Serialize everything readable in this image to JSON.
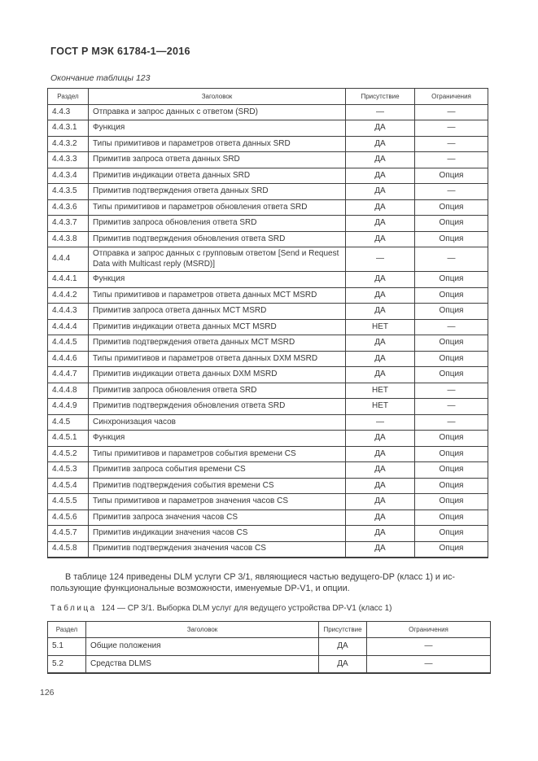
{
  "page": {
    "doc_title": "ГОСТ Р МЭК 61784-1—2016",
    "continuation_note": "Окончание таблицы 123",
    "page_number": "126"
  },
  "columns": {
    "section": "Раздел",
    "heading": "Заголовок",
    "presence": "Присутствие",
    "constraints": "Ограничения"
  },
  "table123": {
    "rows": [
      {
        "section": "4.4.3",
        "heading": "Отправка и запрос данных с ответом (SRD)",
        "presence": "—",
        "constraints": "—"
      },
      {
        "section": "4.4.3.1",
        "heading": "Функция",
        "presence": "ДА",
        "constraints": "—"
      },
      {
        "section": "4.4.3.2",
        "heading": "Типы примитивов и параметров ответа данных SRD",
        "presence": "ДА",
        "constraints": "—"
      },
      {
        "section": "4.4.3.3",
        "heading": "Примитив запроса ответа данных SRD",
        "presence": "ДА",
        "constraints": "—"
      },
      {
        "section": "4.4.3.4",
        "heading": "Примитив индикации ответа данных SRD",
        "presence": "ДА",
        "constraints": "Опция"
      },
      {
        "section": "4.4.3.5",
        "heading": "Примитив подтверждения ответа данных SRD",
        "presence": "ДА",
        "constraints": "—"
      },
      {
        "section": "4.4.3.6",
        "heading": "Типы примитивов и параметров обновления ответа SRD",
        "presence": "ДА",
        "constraints": "Опция"
      },
      {
        "section": "4.4.3.7",
        "heading": "Примитив запроса обновления ответа SRD",
        "presence": "ДА",
        "constraints": "Опция"
      },
      {
        "section": "4.4.3.8",
        "heading": "Примитив подтверждения обновления ответа SRD",
        "presence": "ДА",
        "constraints": "Опция"
      },
      {
        "section": "4.4.4",
        "heading": "Отправка и запрос данных с групповым ответом [Send и Request Data with Multicast reply (MSRD)]",
        "presence": "—",
        "constraints": "—"
      },
      {
        "section": "4.4.4.1",
        "heading": "Функция",
        "presence": "ДА",
        "constraints": "Опция"
      },
      {
        "section": "4.4.4.2",
        "heading": "Типы примитивов и параметров ответа данных MCT MSRD",
        "presence": "ДА",
        "constraints": "Опция"
      },
      {
        "section": "4.4.4.3",
        "heading": "Примитив запроса ответа данных MCT MSRD",
        "presence": "ДА",
        "constraints": "Опция"
      },
      {
        "section": "4.4.4.4",
        "heading": "Примитив индикации ответа данных MCT MSRD",
        "presence": "НЕТ",
        "constraints": "—"
      },
      {
        "section": "4.4.4.5",
        "heading": "Примитив подтверждения ответа данных MCT MSRD",
        "presence": "ДА",
        "constraints": "Опция"
      },
      {
        "section": "4.4.4.6",
        "heading": "Типы примитивов и параметров ответа данных DXM MSRD",
        "presence": "ДА",
        "constraints": "Опция"
      },
      {
        "section": "4.4.4.7",
        "heading": "Примитив индикации ответа данных DXM MSRD",
        "presence": "ДА",
        "constraints": "Опция"
      },
      {
        "section": "4.4.4.8",
        "heading": "Примитив запроса обновления ответа SRD",
        "presence": "НЕТ",
        "constraints": "—"
      },
      {
        "section": "4.4.4.9",
        "heading": "Примитив подтверждения обновления ответа SRD",
        "presence": "НЕТ",
        "constraints": "—"
      },
      {
        "section": "4.4.5",
        "heading": "Синхронизация часов",
        "presence": "—",
        "constraints": "—"
      },
      {
        "section": "4.4.5.1",
        "heading": "Функция",
        "presence": "ДА",
        "constraints": "Опция"
      },
      {
        "section": "4.4.5.2",
        "heading": "Типы примитивов и параметров события времени CS",
        "presence": "ДА",
        "constraints": "Опция"
      },
      {
        "section": "4.4.5.3",
        "heading": "Примитив запроса события времени CS",
        "presence": "ДА",
        "constraints": "Опция"
      },
      {
        "section": "4.4.5.4",
        "heading": "Примитив подтверждения события времени CS",
        "presence": "ДА",
        "constraints": "Опция"
      },
      {
        "section": "4.4.5.5",
        "heading": "Типы примитивов и параметров значения часов CS",
        "presence": "ДА",
        "constraints": "Опция"
      },
      {
        "section": "4.4.5.6",
        "heading": "Примитив запроса значения часов CS",
        "presence": "ДА",
        "constraints": "Опция"
      },
      {
        "section": "4.4.5.7",
        "heading": "Примитив индикации значения часов CS",
        "presence": "ДА",
        "constraints": "Опция"
      },
      {
        "section": "4.4.5.8",
        "heading": "Примитив подтверждения значения часов CS",
        "presence": "ДА",
        "constraints": "Опция"
      }
    ]
  },
  "paragraph": {
    "line1": "В таблице 124 приведены DLM услуги CP 3/1, являющиеся частью ведущего-DP (класс 1) и ис-",
    "line2": "пользующие функциональные возможности, именуемые DP-V1, и опции."
  },
  "table124": {
    "caption_label": "Таблица",
    "caption_rest": "124 — CP 3/1. Выборка DLM услуг для ведущего устройства DP-V1 (класс 1)",
    "rows": [
      {
        "section": "5.1",
        "heading": "Общие положения",
        "presence": "ДА",
        "constraints": "—"
      },
      {
        "section": "5.2",
        "heading": "Средства DLMS",
        "presence": "ДА",
        "constraints": "—"
      }
    ]
  }
}
